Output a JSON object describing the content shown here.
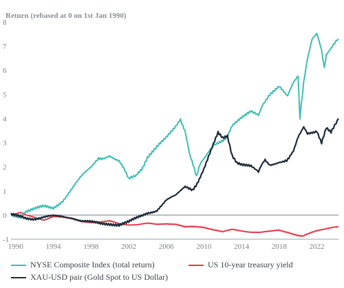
{
  "chart_data": {
    "type": "line",
    "ylabel": "Return (rebased at 0 on 1st Jan 1990)",
    "ylim": [
      -1,
      8
    ],
    "xlim": [
      1989.5,
      2024.3
    ],
    "yticks": [
      "-1",
      "0",
      "1",
      "2",
      "3",
      "4",
      "5",
      "6",
      "7",
      "8"
    ],
    "xticks": [
      "1990",
      "1994",
      "1998",
      "2002",
      "2006",
      "2010",
      "2014",
      "2018",
      "2022"
    ],
    "grid": false,
    "zero_line": true,
    "legend_position": "bottom",
    "series": [
      {
        "name": "NYSE Composite Index (total return)",
        "color": "#3dbdb2",
        "x": [
          1989.5,
          1990.5,
          1991,
          1992,
          1993,
          1994,
          1995,
          1996,
          1997,
          1998,
          1998.8,
          1999.5,
          2000,
          2000.5,
          2001,
          2001.5,
          2002,
          2002.8,
          2003.5,
          2004,
          2005,
          2006,
          2007,
          2007.5,
          2008,
          2008.5,
          2009.2,
          2009.6,
          2010,
          2010.5,
          2011,
          2011.8,
          2012.5,
          2013,
          2014,
          2015,
          2015.8,
          2016.2,
          2017,
          2018,
          2018.9,
          2019.5,
          2020,
          2020.2,
          2020.6,
          2021,
          2021.5,
          2022,
          2022.5,
          2022.8,
          2023,
          2023.5,
          2024.3
        ],
        "y": [
          0.0,
          -0.05,
          0.15,
          0.25,
          0.35,
          0.3,
          0.6,
          1.1,
          1.6,
          2.0,
          2.3,
          2.4,
          2.45,
          2.3,
          2.2,
          1.9,
          1.5,
          1.6,
          2.0,
          2.4,
          2.8,
          3.2,
          3.7,
          4.0,
          3.5,
          2.5,
          1.6,
          2.1,
          2.3,
          2.6,
          2.9,
          3.0,
          3.3,
          3.7,
          4.0,
          4.3,
          4.1,
          4.5,
          5.0,
          5.3,
          4.9,
          5.5,
          5.8,
          4.0,
          5.5,
          6.5,
          7.3,
          7.5,
          6.8,
          6.1,
          6.6,
          6.9,
          7.3
        ]
      },
      {
        "name": "US 10-year treasury yield",
        "color": "#e5394d",
        "x": [
          1989.5,
          1990.5,
          1991,
          1992,
          1993,
          1994,
          1995,
          1996,
          1997,
          1998,
          1999,
          2000,
          2001,
          2002,
          2003,
          2004,
          2005,
          2006,
          2007,
          2008,
          2009,
          2010,
          2011,
          2012,
          2013,
          2014,
          2015,
          2016,
          2017,
          2018,
          2019,
          2020,
          2020.5,
          2021,
          2022,
          2022.8,
          2023,
          2023.8,
          2024.3
        ],
        "y": [
          0.0,
          0.1,
          0.0,
          -0.1,
          -0.2,
          -0.05,
          -0.1,
          -0.15,
          -0.25,
          -0.3,
          -0.3,
          -0.25,
          -0.35,
          -0.4,
          -0.4,
          -0.35,
          -0.38,
          -0.35,
          -0.38,
          -0.5,
          -0.48,
          -0.5,
          -0.6,
          -0.7,
          -0.6,
          -0.65,
          -0.7,
          -0.72,
          -0.68,
          -0.62,
          -0.72,
          -0.85,
          -0.88,
          -0.8,
          -0.65,
          -0.6,
          -0.55,
          -0.5,
          -0.48
        ]
      },
      {
        "name": "XAU-USD pair (Gold Spot to US Dollar)",
        "color": "#1d2a38",
        "x": [
          1989.5,
          1990.5,
          1991,
          1992,
          1993,
          1994,
          1995,
          1996,
          1997,
          1998,
          1999,
          2000,
          2001,
          2002,
          2003,
          2004,
          2005,
          2006,
          2007,
          2008,
          2008.8,
          2009.5,
          2010,
          2010.5,
          2011,
          2011.5,
          2012,
          2012.5,
          2013,
          2013.5,
          2014,
          2015,
          2015.8,
          2016.5,
          2017,
          2018,
          2018.8,
          2019.5,
          2020,
          2020.6,
          2021,
          2022,
          2022.5,
          2023,
          2023.5,
          2024.3
        ],
        "y": [
          0.0,
          -0.05,
          -0.1,
          -0.15,
          -0.1,
          -0.05,
          -0.05,
          -0.1,
          -0.25,
          -0.3,
          -0.35,
          -0.35,
          -0.4,
          -0.3,
          -0.1,
          0.1,
          0.2,
          0.6,
          0.8,
          1.2,
          1.0,
          1.5,
          1.9,
          2.4,
          2.9,
          3.4,
          3.2,
          3.3,
          2.5,
          2.2,
          2.1,
          2.0,
          1.8,
          2.3,
          2.1,
          2.2,
          2.3,
          2.6,
          3.2,
          3.7,
          3.4,
          3.5,
          3.0,
          3.6,
          3.4,
          4.0
        ]
      }
    ]
  }
}
